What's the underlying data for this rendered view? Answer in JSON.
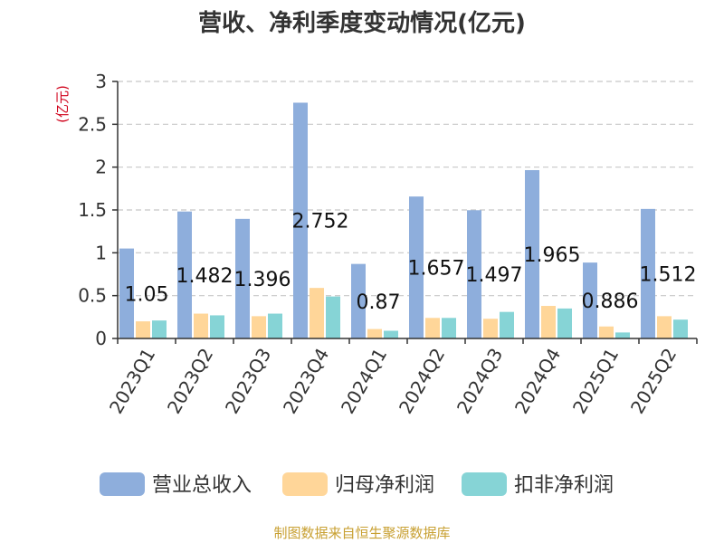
{
  "source_text": "制图数据来自恒生聚源数据库",
  "chart_data": {
    "type": "bar",
    "title": "营收、净利季度变动情况(亿元)",
    "ylabel": "(亿元)",
    "xlabel": "",
    "ylim": [
      0,
      3
    ],
    "yticks": [
      "0",
      "0.5",
      "1",
      "1.5",
      "2",
      "2.5",
      "3"
    ],
    "ytick_values": [
      0,
      0.5,
      1,
      1.5,
      2,
      2.5,
      3
    ],
    "grid": true,
    "legend_position": "bottom",
    "categories": [
      "2023Q1",
      "2023Q2",
      "2023Q3",
      "2023Q4",
      "2024Q1",
      "2024Q2",
      "2024Q3",
      "2024Q4",
      "2025Q1",
      "2025Q2"
    ],
    "series": [
      {
        "name": "营业总收入",
        "color": "#8eaedc",
        "values": [
          1.05,
          1.482,
          1.396,
          2.752,
          0.87,
          1.657,
          1.497,
          1.965,
          0.886,
          1.512
        ]
      },
      {
        "name": "归母净利润",
        "color": "#ffd699",
        "values": [
          0.2,
          0.29,
          0.26,
          0.59,
          0.11,
          0.24,
          0.23,
          0.38,
          0.14,
          0.26
        ]
      },
      {
        "name": "扣非净利润",
        "color": "#86d4d6",
        "values": [
          0.21,
          0.27,
          0.29,
          0.49,
          0.09,
          0.24,
          0.31,
          0.35,
          0.07,
          0.22
        ]
      }
    ],
    "data_labels": [
      "1.05",
      "1.482",
      "1.396",
      "2.752",
      "0.87",
      "1.657",
      "1.497",
      "1.965",
      "0.886",
      "1.512"
    ]
  }
}
